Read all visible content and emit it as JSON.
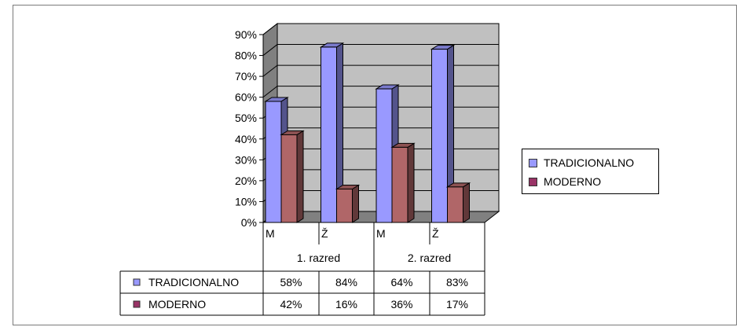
{
  "chart_data": {
    "type": "bar",
    "subtype": "3d-clustered-column",
    "title": "",
    "xlabel": "",
    "ylabel": "",
    "ylim": [
      0,
      90
    ],
    "yticks": [
      "0%",
      "10%",
      "20%",
      "30%",
      "40%",
      "50%",
      "60%",
      "70%",
      "80%",
      "90%"
    ],
    "grid": true,
    "legend_position": "right",
    "groups": [
      {
        "label": "1. razred",
        "categories": [
          "M",
          "Ž"
        ]
      },
      {
        "label": "2. razred",
        "categories": [
          "M",
          "Ž"
        ]
      }
    ],
    "categories": [
      "M",
      "Ž",
      "M",
      "Ž"
    ],
    "series": [
      {
        "name": "TRADICIONALNO",
        "color": "#9999ff",
        "values": [
          58,
          84,
          64,
          83
        ],
        "labels": [
          "58%",
          "84%",
          "64%",
          "83%"
        ]
      },
      {
        "name": "MODERNO",
        "color": "#993366",
        "values": [
          42,
          16,
          36,
          17
        ],
        "labels": [
          "42%",
          "16%",
          "36%",
          "17%"
        ]
      }
    ]
  },
  "colors": {
    "wall": "#c0c0c0",
    "floor": "#808080",
    "series1_face": "#9999ff",
    "series2_face": "#b06668"
  }
}
